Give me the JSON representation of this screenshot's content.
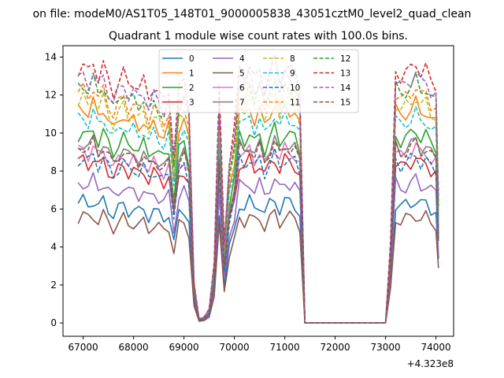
{
  "chart_data": {
    "type": "line",
    "suptitle": "on file: modeM0/AS1T05_148T01_9000005838_43051cztM0_level2_quad_clean",
    "title": "Quadrant 1 module wise count rates with 100.0s bins.",
    "xlabel": "",
    "ylabel": "",
    "x_offset_label": "+4.323e8",
    "xlim": [
      66600,
      74350
    ],
    "ylim": [
      -0.7,
      14.6
    ],
    "xticks": [
      67000,
      68000,
      69000,
      70000,
      71000,
      72000,
      73000,
      74000
    ],
    "yticks": [
      0,
      2,
      4,
      6,
      8,
      10,
      12,
      14
    ],
    "grid": false,
    "legend": {
      "placement": "top-center",
      "columns": 4
    },
    "x": [
      66900,
      67000,
      67100,
      67200,
      67300,
      67400,
      67500,
      67600,
      67700,
      67800,
      67900,
      68000,
      68100,
      68200,
      68300,
      68400,
      68500,
      68600,
      68700,
      68800,
      68900,
      69000,
      69100,
      69200,
      69300,
      69400,
      69500,
      69600,
      69700,
      69800,
      69900,
      70000,
      70100,
      70200,
      70300,
      70400,
      70500,
      70600,
      70700,
      70800,
      70900,
      71000,
      71100,
      71200,
      71300,
      71400,
      71500,
      72000,
      72500,
      73000,
      73100,
      73200,
      73300,
      73400,
      73500,
      73600,
      73700,
      73800,
      73900,
      74000,
      74050
    ],
    "base": [
      6.3,
      6.4,
      6.2,
      6.5,
      6.1,
      6.4,
      6.0,
      5.7,
      6.0,
      6.2,
      5.9,
      6.0,
      5.8,
      6.0,
      5.6,
      5.9,
      5.7,
      5.5,
      5.8,
      4.2,
      5.8,
      6.0,
      5.4,
      1.0,
      0.1,
      0.15,
      0.35,
      1.5,
      5.8,
      2.0,
      4.0,
      4.8,
      6.3,
      6.1,
      6.4,
      6.0,
      6.3,
      5.8,
      6.2,
      6.5,
      6.0,
      6.4,
      6.3,
      6.2,
      5.8,
      0.0,
      0.0,
      0.0,
      0.0,
      0.0,
      2.0,
      6.3,
      6.1,
      6.2,
      6.3,
      6.5,
      6.2,
      6.3,
      6.0,
      5.9,
      3.2
    ],
    "series": [
      {
        "name": "0",
        "color": "#1f77b4",
        "dash": "solid",
        "factor": 1.0
      },
      {
        "name": "1",
        "color": "#ff7f0e",
        "dash": "solid",
        "factor": 1.78
      },
      {
        "name": "2",
        "color": "#2ca02c",
        "dash": "solid",
        "factor": 1.57
      },
      {
        "name": "3",
        "color": "#d62728",
        "dash": "solid",
        "factor": 1.34
      },
      {
        "name": "4",
        "color": "#9467bd",
        "dash": "solid",
        "factor": 1.16
      },
      {
        "name": "5",
        "color": "#8c564b",
        "dash": "solid",
        "factor": 0.88
      },
      {
        "name": "6",
        "color": "#e377c2",
        "dash": "solid",
        "factor": 1.43
      },
      {
        "name": "7",
        "color": "#7f7f7f",
        "dash": "solid",
        "factor": 1.48
      },
      {
        "name": "8",
        "color": "#bcbd22",
        "dash": "dashed",
        "factor": 1.84
      },
      {
        "name": "9",
        "color": "#17becf",
        "dash": "dashed",
        "factor": 1.7
      },
      {
        "name": "10",
        "color": "#1f77b4",
        "dash": "dashed",
        "factor": 1.36
      },
      {
        "name": "11",
        "color": "#ff7f0e",
        "dash": "dashed",
        "factor": 1.92
      },
      {
        "name": "12",
        "color": "#2ca02c",
        "dash": "dashed",
        "factor": 1.97
      },
      {
        "name": "13",
        "color": "#d62728",
        "dash": "dashed",
        "factor": 2.12
      },
      {
        "name": "14",
        "color": "#9467bd",
        "dash": "dashed",
        "factor": 2.03
      },
      {
        "name": "15",
        "color": "#8c564b",
        "dash": "dashed",
        "factor": 1.46
      }
    ]
  }
}
